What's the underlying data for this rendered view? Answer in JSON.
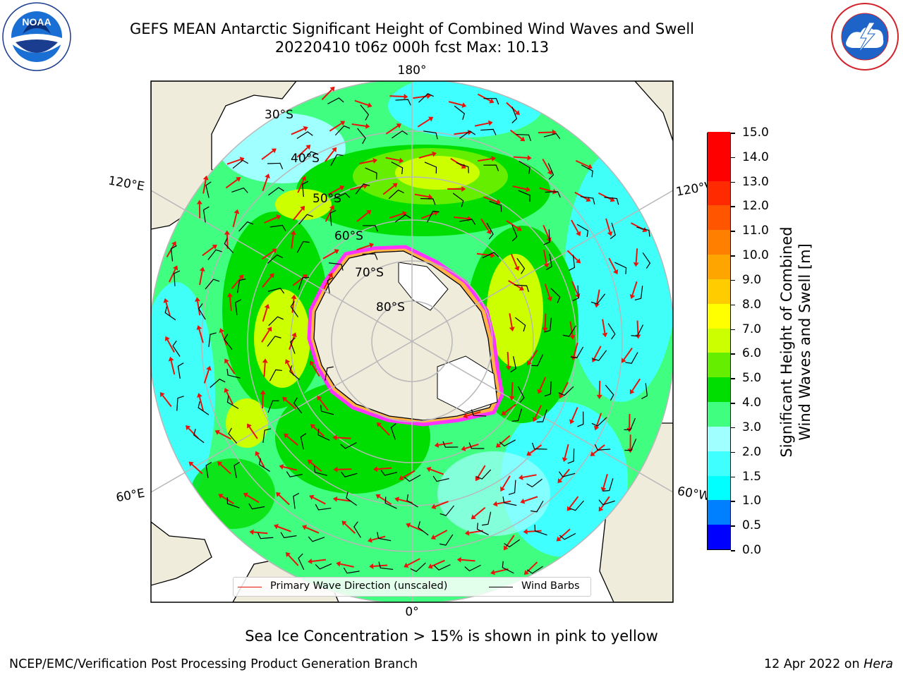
{
  "title": {
    "line1": "GEFS MEAN Antarctic Significant Height of Combined Wind Waves and Swell",
    "line2": "20220410 t06z 000h fcst   Max: 10.13"
  },
  "logos": {
    "left": {
      "text": "NOAA",
      "ring_text": "NATIONAL OCEANIC AND ATMOSPHERIC ADMINISTRATION · U.S. DEPARTMENT OF COMMERCE",
      "color": "#1a3d8f"
    },
    "right": {
      "ring_text": "NATIONAL WEATHER SERVICE",
      "color": "#d2232a"
    }
  },
  "map": {
    "longitude_labels": [
      "180°",
      "120°E",
      "120°W",
      "60°E",
      "60°W",
      "0°"
    ],
    "latitude_labels": [
      "30°S",
      "40°S",
      "50°S",
      "60°S",
      "70°S",
      "80°S"
    ],
    "colors": {
      "land": "#efecdc",
      "ice_edge": "#ff33ff",
      "ice_inner": "#ffb347",
      "arrows": "#e8140c",
      "barbs": "#000000",
      "grid": "#b8b8b8"
    }
  },
  "legend": {
    "primary_wave": {
      "label": "Primary Wave Direction (unscaled)",
      "color": "#e8140c"
    },
    "wind_barbs": {
      "label": "Wind Barbs",
      "color": "#000000"
    }
  },
  "colorbar": {
    "title_line1": "Significant Height of Combined",
    "title_line2": "Wind Waves and Swell [m]",
    "ticks": [
      "0.0",
      "0.5",
      "1.0",
      "1.5",
      "2.0",
      "3.0",
      "4.0",
      "5.0",
      "6.0",
      "7.0",
      "8.0",
      "9.0",
      "10.0",
      "11.0",
      "12.0",
      "13.0",
      "14.0",
      "15.0"
    ],
    "colors": [
      "#0000ff",
      "#0080ff",
      "#00ffff",
      "#40ffff",
      "#a0ffff",
      "#40ff80",
      "#00dd00",
      "#66ee00",
      "#ccff00",
      "#ffff00",
      "#ffcc00",
      "#ffa500",
      "#ff8000",
      "#ff5500",
      "#ff2a00",
      "#ff0000",
      "#ff0000"
    ]
  },
  "notes": {
    "sea_ice": "Sea Ice Concentration > 15% is shown in pink to yellow",
    "footer_left": "NCEP/EMC/Verification Post Processing Product Generation Branch",
    "footer_right_date": "12 Apr 2022 on ",
    "footer_right_machine": "Hera"
  }
}
